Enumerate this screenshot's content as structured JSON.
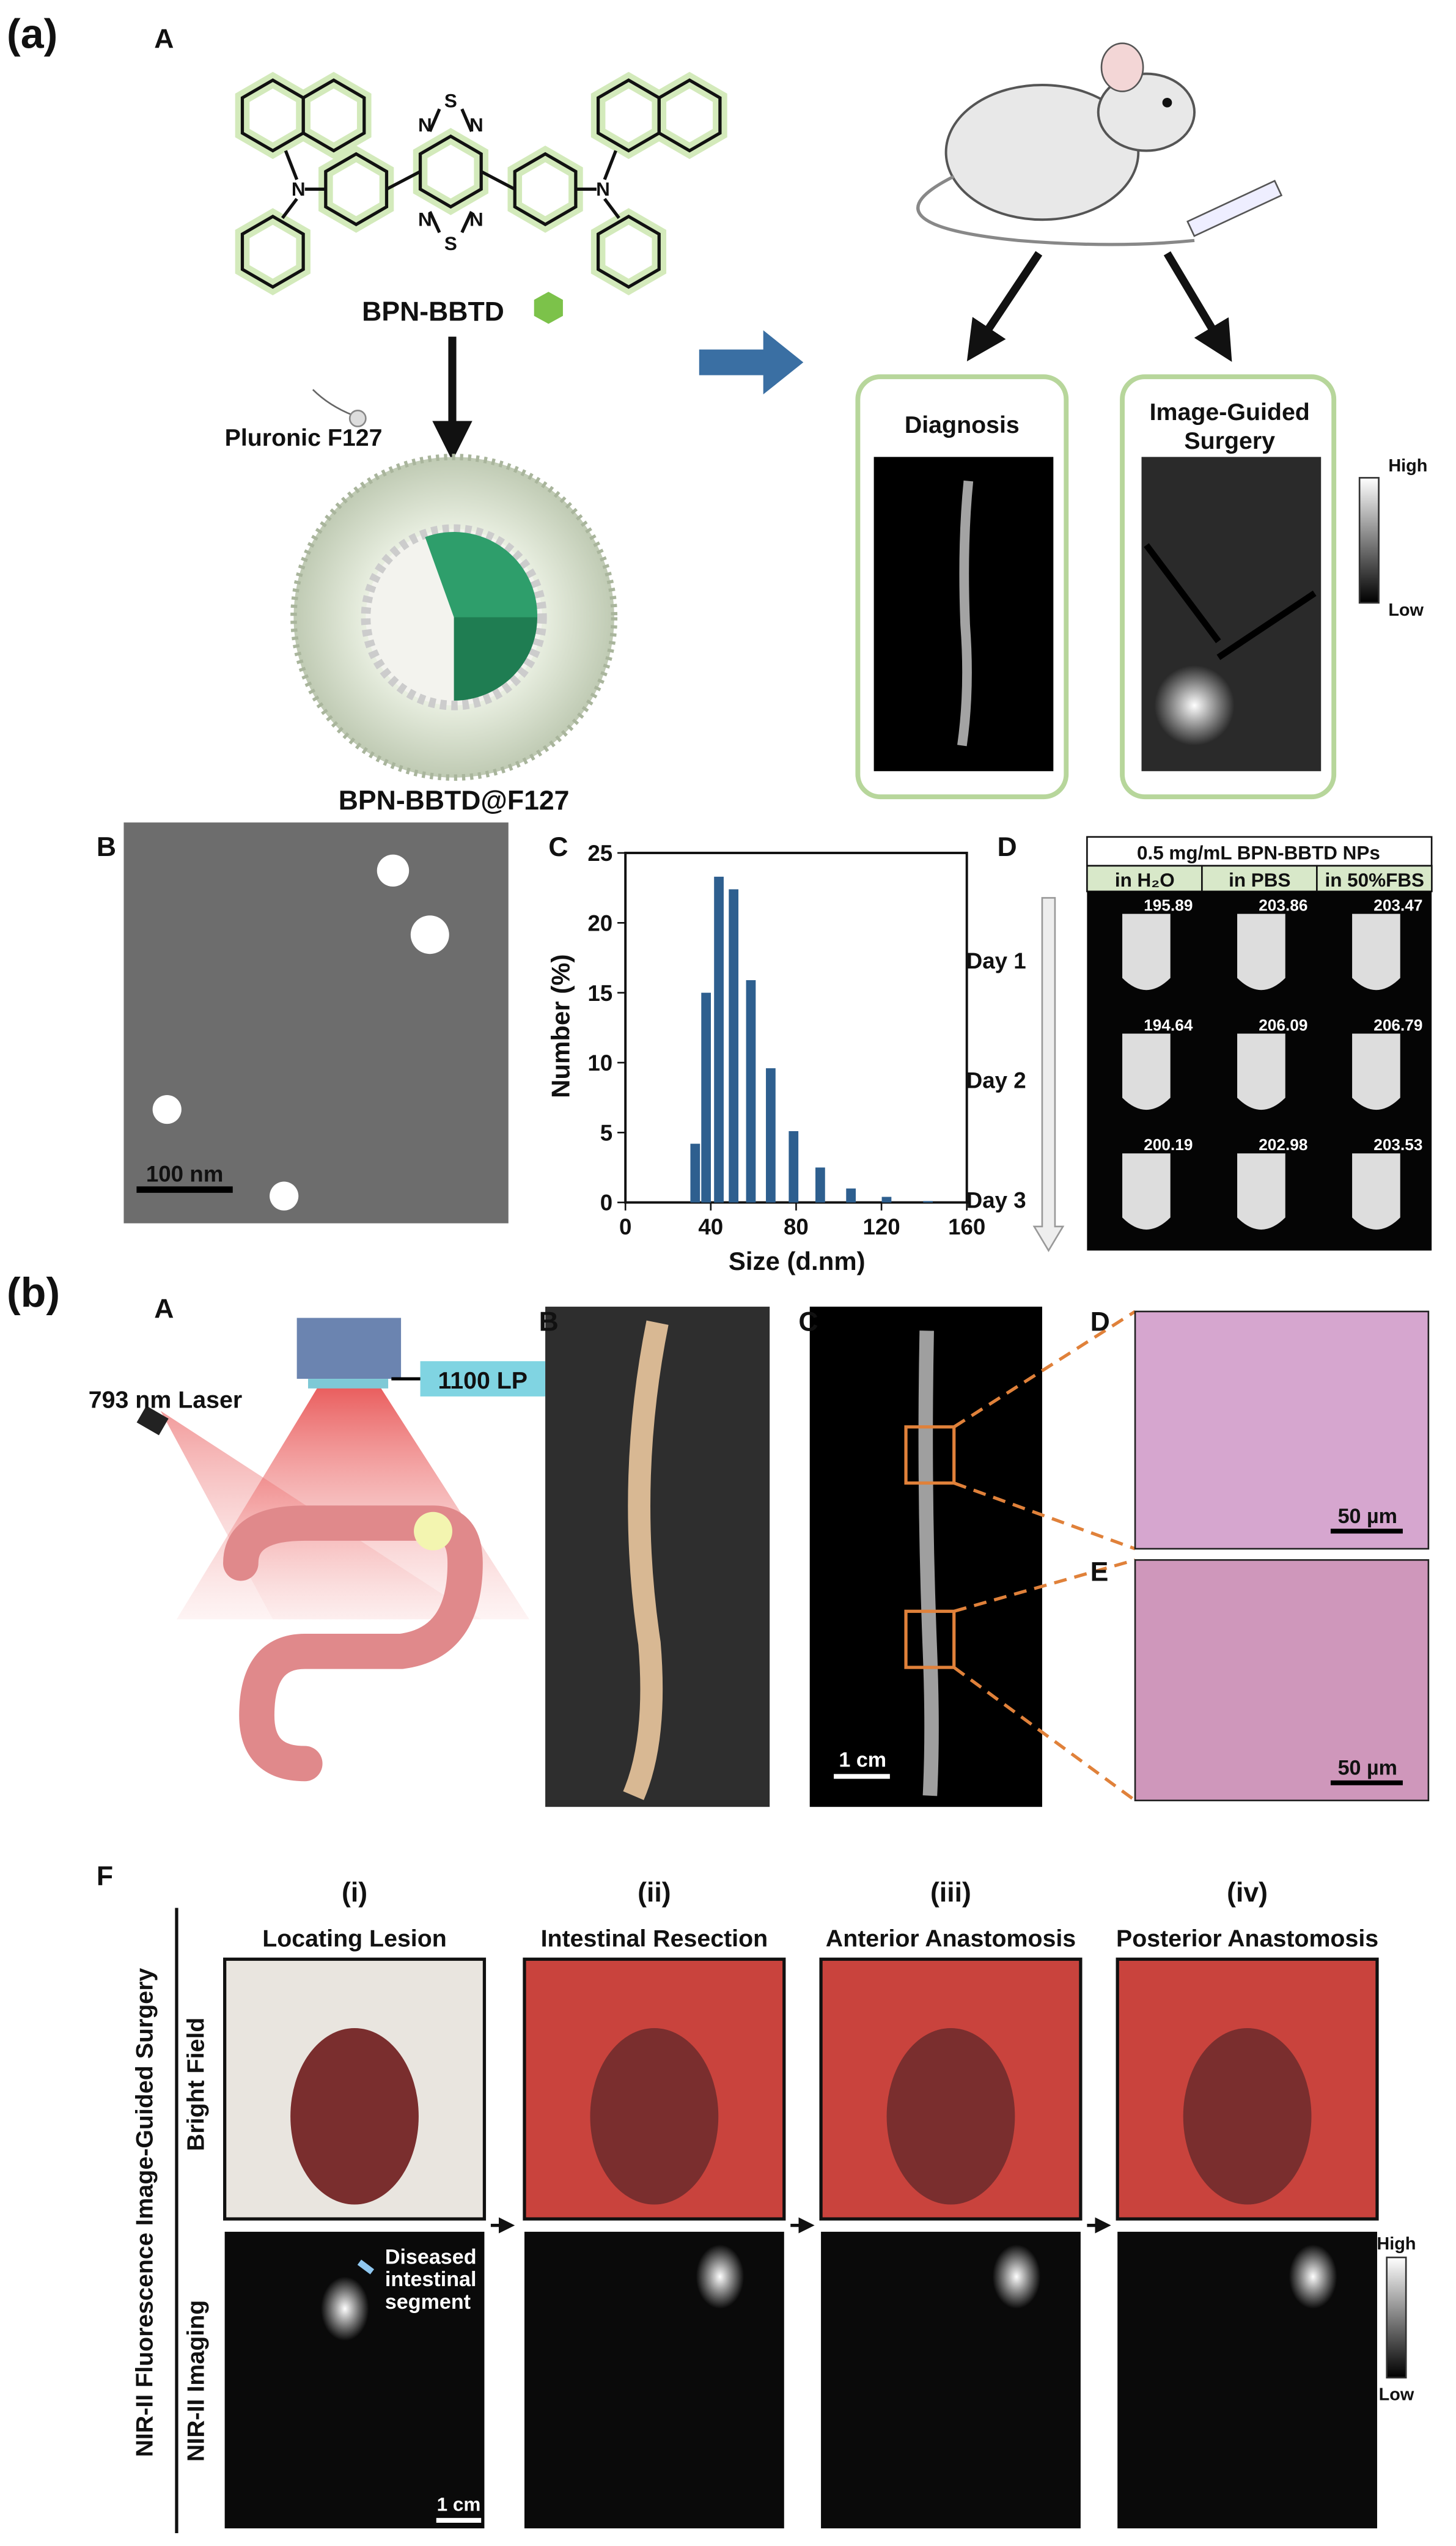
{
  "panel_a": {
    "label": "(a)",
    "sub_a": "A",
    "atoms": [
      "S",
      "N",
      "N",
      "N",
      "N",
      "S",
      "N",
      "N"
    ],
    "molecule": "BPN-BBTD",
    "surfactant": "Pluronic  F127",
    "nanoparticle": "BPN-BBTD@F127",
    "diagnosis": "Diagnosis",
    "surgery": [
      "Image-Guided",
      "Surgery"
    ],
    "scale_high": "High",
    "scale_low": "Low",
    "sub_b": "B",
    "tem_scale": "100 nm",
    "sub_c": "C",
    "sub_d": "D",
    "stability": {
      "header": "0.5 mg/mL BPN-BBTD NPs",
      "columns": [
        "in H₂O",
        "in PBS",
        "in 50%FBS"
      ],
      "rows": [
        {
          "day": "Day 1",
          "values": [
            "195.89",
            "203.86",
            "203.47"
          ]
        },
        {
          "day": "Day 2",
          "values": [
            "194.64",
            "206.09",
            "206.79"
          ]
        },
        {
          "day": "Day 3",
          "values": [
            "200.19",
            "202.98",
            "203.53"
          ]
        }
      ]
    }
  },
  "chart_data": {
    "type": "bar",
    "xlabel": "Size (d.nm)",
    "ylabel": "Number (%)",
    "x": [
      32.7,
      37.8,
      43.8,
      50.7,
      58.8,
      68.1,
      78.8,
      91.3,
      105.7,
      122.4,
      141.8
    ],
    "values": [
      4.2,
      15.0,
      23.3,
      22.4,
      15.9,
      9.6,
      5.1,
      2.5,
      1.0,
      0.4,
      0.1
    ],
    "color": "#2e5f8f",
    "xlim": [
      0,
      160
    ],
    "xticks": [
      0,
      40,
      80,
      120,
      160
    ],
    "ylim": [
      0,
      25
    ],
    "yticks": [
      0,
      5,
      10,
      15,
      20,
      25
    ]
  },
  "panel_b": {
    "label": "(b)",
    "sub_a": "A",
    "laser": "793 nm Laser",
    "filter": "1100 LP",
    "sub_b": "B",
    "sub_c": "C",
    "nir_scale": "1 cm",
    "sub_d": "D",
    "he_scale_d": "50 µm",
    "sub_e": "E",
    "he_scale_e": "50 µm",
    "sub_f": "F",
    "figure_title": "NIR-II Fluorescence Image-Guided Surgery",
    "rows": [
      "Bright Field",
      "NIR-II Imaging"
    ],
    "steps": [
      {
        "num": "(i)",
        "title": "Locating Lesion"
      },
      {
        "num": "(ii)",
        "title": "Intestinal Resection"
      },
      {
        "num": "(iii)",
        "title": "Anterior Anastomosis"
      },
      {
        "num": "(iv)",
        "title": "Posterior Anastomosis"
      }
    ],
    "lesion_note": [
      "Diseased",
      "intestinal",
      "segment"
    ],
    "surgery_scale": "1 cm",
    "scale_high": "High",
    "scale_low": "Low"
  }
}
